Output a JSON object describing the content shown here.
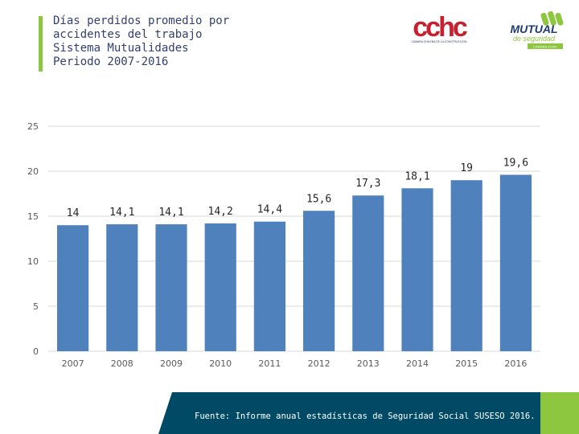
{
  "header": {
    "title_lines": [
      "Días perdidos promedio por",
      "accidentes del trabajo",
      "Sistema Mutualidades",
      "Periodo 2007-2016"
    ]
  },
  "logos": {
    "cchc": {
      "wordmark": "cchc",
      "tagline": "CAMARA CHILENA DE LA CONSTRUCCION"
    },
    "mutual": {
      "name": "MUTUAL",
      "sub": "de seguridad",
      "badge": "CAMARA CCHC"
    }
  },
  "colors": {
    "bar": "#4f81bd",
    "accent_green": "#8dc63f",
    "footer_navy": "#004a66",
    "cchc_red": "#c8202f",
    "cchc_blue": "#1f3b73",
    "mutual_green": "#8dc63f",
    "mutual_navy": "#1f3b73"
  },
  "chart_data": {
    "type": "bar",
    "title": "",
    "xlabel": "",
    "ylabel": "",
    "categories": [
      "2007",
      "2008",
      "2009",
      "2010",
      "2011",
      "2012",
      "2013",
      "2014",
      "2015",
      "2016"
    ],
    "values": [
      14,
      14.1,
      14.1,
      14.2,
      14.4,
      15.6,
      17.3,
      18.1,
      19,
      19.6
    ],
    "value_labels": [
      "14",
      "14,1",
      "14,1",
      "14,2",
      "14,4",
      "15,6",
      "17,3",
      "18,1",
      "19",
      "19,6"
    ],
    "ylim": [
      0,
      25
    ],
    "yticks": [
      0,
      5,
      10,
      15,
      20,
      25
    ],
    "grid": true,
    "legend": "none"
  },
  "footer": {
    "source": "Fuente: Informe anual estadísticas de Seguridad Social SUSESO 2016."
  }
}
